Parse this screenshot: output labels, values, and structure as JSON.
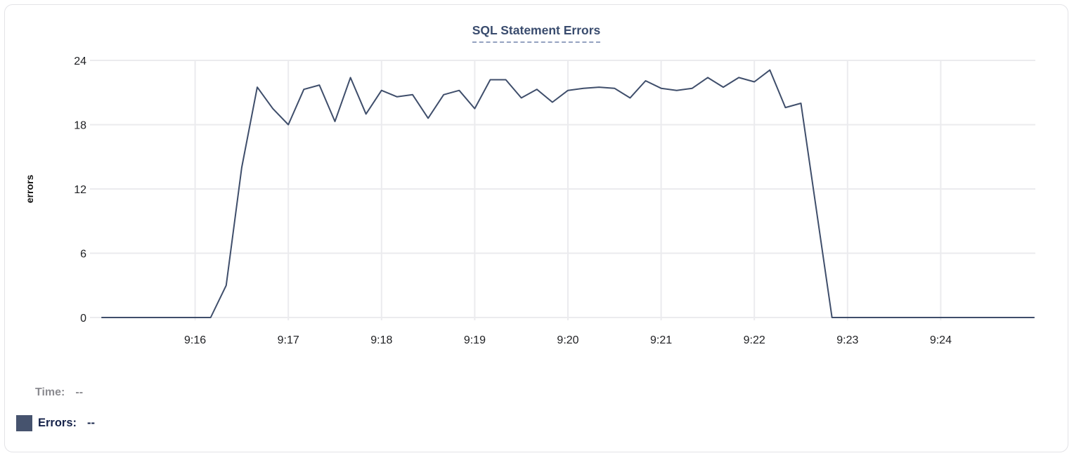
{
  "title": {
    "text": "SQL Statement Errors"
  },
  "chart_data": {
    "type": "line",
    "title": "SQL Statement Errors",
    "xlabel": "",
    "ylabel": "errors",
    "grid": true,
    "legend_position": "bottom-left",
    "x_axis": {
      "range": [
        "9:15:00",
        "9:25:00"
      ],
      "tick_labels": [
        "9:16",
        "9:17",
        "9:18",
        "9:19",
        "9:20",
        "9:21",
        "9:22",
        "9:23",
        "9:24"
      ],
      "tick_times": [
        "9:16:00",
        "9:17:00",
        "9:18:00",
        "9:19:00",
        "9:20:00",
        "9:21:00",
        "9:22:00",
        "9:23:00",
        "9:24:00"
      ]
    },
    "y_axis": {
      "range": [
        0,
        24
      ],
      "ticks": [
        0,
        6,
        12,
        18,
        24
      ]
    },
    "series": [
      {
        "name": "Errors",
        "color": "#3f4e6b",
        "times": [
          "9:15:00",
          "9:15:10",
          "9:15:20",
          "9:15:30",
          "9:15:40",
          "9:15:50",
          "9:16:00",
          "9:16:10",
          "9:16:20",
          "9:16:30",
          "9:16:40",
          "9:16:50",
          "9:17:00",
          "9:17:10",
          "9:17:20",
          "9:17:30",
          "9:17:40",
          "9:17:50",
          "9:18:00",
          "9:18:10",
          "9:18:20",
          "9:18:30",
          "9:18:40",
          "9:18:50",
          "9:19:00",
          "9:19:10",
          "9:19:20",
          "9:19:30",
          "9:19:40",
          "9:19:50",
          "9:20:00",
          "9:20:10",
          "9:20:20",
          "9:20:30",
          "9:20:40",
          "9:20:50",
          "9:21:00",
          "9:21:10",
          "9:21:20",
          "9:21:30",
          "9:21:40",
          "9:21:50",
          "9:22:00",
          "9:22:10",
          "9:22:20",
          "9:22:30",
          "9:22:40",
          "9:22:50",
          "9:23:00",
          "9:23:10",
          "9:23:20",
          "9:23:30",
          "9:23:40",
          "9:23:50",
          "9:24:00",
          "9:24:10",
          "9:24:20",
          "9:24:30",
          "9:24:40",
          "9:24:50",
          "9:25:00"
        ],
        "values": [
          0,
          0,
          0,
          0,
          0,
          0,
          0,
          0,
          3,
          14,
          21.5,
          19.5,
          18,
          21.3,
          21.7,
          18.3,
          22.4,
          19,
          21.2,
          20.6,
          20.8,
          18.6,
          20.8,
          21.2,
          19.5,
          22.2,
          22.2,
          20.5,
          21.3,
          20.1,
          21.2,
          21.4,
          21.5,
          21.4,
          20.5,
          22.1,
          21.4,
          21.2,
          21.4,
          22.4,
          21.5,
          22.4,
          22.0,
          23.1,
          19.6,
          20.0,
          10,
          0,
          0,
          0,
          0,
          0,
          0,
          0,
          0,
          0,
          0,
          0,
          0,
          0,
          0
        ]
      }
    ]
  },
  "hover_readout": {
    "time_label": "Time:",
    "time_value": "--",
    "series_label": "Errors:",
    "series_value": "--"
  },
  "colors": {
    "line": "#3f4e6b",
    "swatch": "#46536e",
    "title": "#3a4c6e",
    "title_underline": "#94a1c0",
    "grid": "#ebebee",
    "tick_text": "#202124",
    "axis_label_text": "#111111",
    "muted_text": "#8b8b90",
    "dark_text": "#16234a",
    "card_border": "#e3e3e7",
    "background": "#ffffff"
  }
}
